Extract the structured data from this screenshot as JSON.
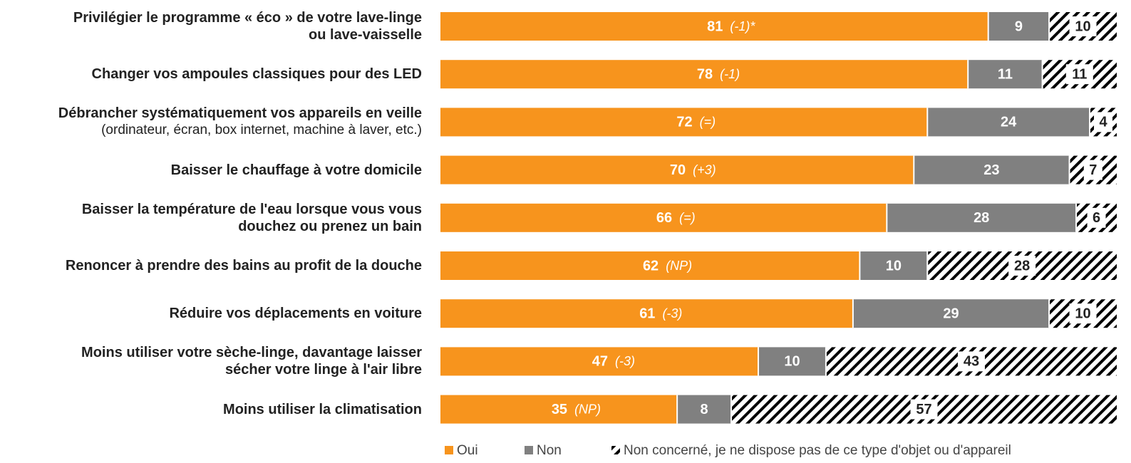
{
  "chart_data": {
    "type": "stacked-barh",
    "categories": [
      "Privilégier le programme « éco » de votre lave-linge\nou lave-vaisselle",
      "Changer vos ampoules classiques pour des LED",
      "Débrancher systématiquement vos appareils en veille",
      "Baisser le chauffage à votre domicile",
      "Baisser la température de l'eau lorsque vous vous\ndouchez ou prenez un bain",
      "Renoncer à prendre des bains au profit de la douche",
      "Réduire vos déplacements en voiture",
      "Moins utiliser votre sèche-linge, davantage laisser\nsécher votre linge à l'air libre",
      "Moins utiliser la climatisation"
    ],
    "category_notes": [
      null,
      null,
      "(ordinateur, écran, box internet, machine à laver, etc.)",
      null,
      null,
      null,
      null,
      null,
      null
    ],
    "xlim": [
      0,
      100
    ],
    "series": [
      {
        "name": "Oui",
        "color": "#f7941d",
        "values": [
          81,
          78,
          72,
          70,
          66,
          62,
          61,
          47,
          35
        ],
        "changes": [
          "(-1)*",
          "(-1)",
          "(=)",
          "(+3)",
          "(=)",
          "(NP)",
          "(-3)",
          "(-3)",
          "(NP)"
        ]
      },
      {
        "name": "Non",
        "color": "#808080",
        "values": [
          9,
          11,
          24,
          23,
          28,
          10,
          29,
          10,
          8
        ]
      },
      {
        "name": "Non concerné, je ne dispose pas de ce type d'objet ou d'appareil",
        "color": "#000000",
        "hatch": true,
        "values": [
          10,
          11,
          4,
          7,
          6,
          28,
          10,
          43,
          57
        ]
      }
    ]
  }
}
